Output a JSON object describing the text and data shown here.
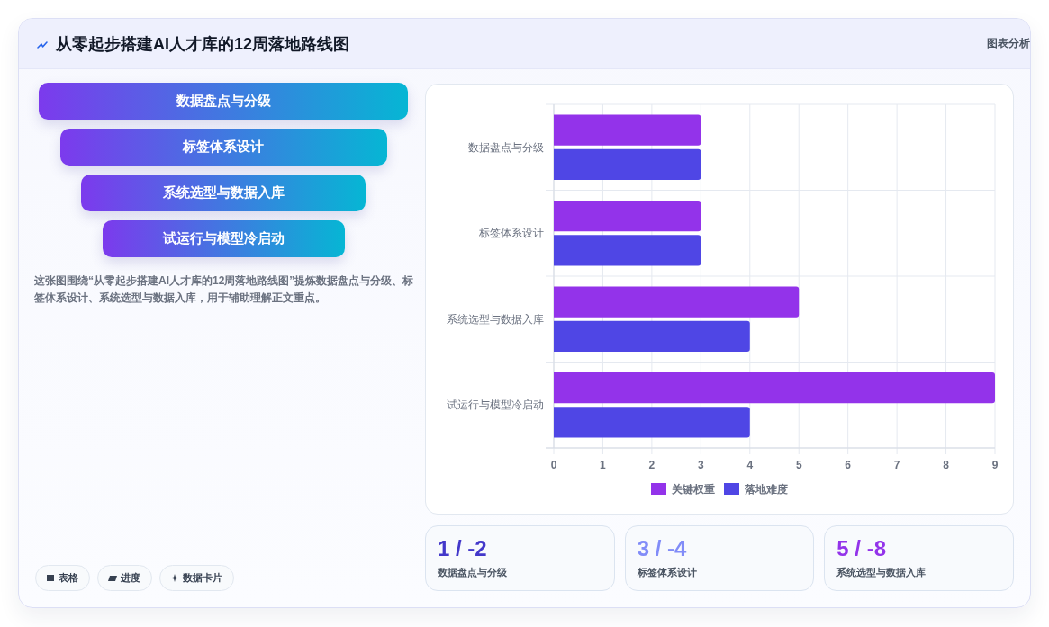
{
  "chart_data": [
    {
      "type": "other",
      "title": "从零起步搭建AI人才库的12周落地路线图",
      "categories": [
        "数据盘点与分级",
        "标签体系设计",
        "系统选型与数据入库",
        "试运行与模型冷启动"
      ],
      "annotations": [
        "图表分析",
        "这张图围绕“从零起步搭建AI人才库的12周落地路线图”提炼数据盘点与分级、标签体系设计、系统选型与数据入库，用于辅助理解正文重点。",
        "表格",
        "进度",
        "数据卡片"
      ]
    },
    {
      "type": "bar",
      "orientation": "horizontal",
      "categories": [
        "数据盘点与分级",
        "标签体系设计",
        "系统选型与数据入库",
        "试运行与模型冷启动"
      ],
      "series": [
        {
          "name": "关键权重",
          "color": "#9333ea",
          "values": [
            3,
            3,
            5,
            9
          ]
        },
        {
          "name": "落地难度",
          "color": "#4f46e5",
          "values": [
            3,
            3,
            4,
            4
          ]
        }
      ],
      "xlim": [
        0,
        9
      ],
      "xticks": [
        0,
        1,
        2,
        3,
        4,
        5,
        6,
        7,
        8,
        9
      ],
      "grid": true,
      "legend": "bottom"
    },
    {
      "type": "other",
      "categories": [
        "数据盘点与分级",
        "标签体系设计",
        "系统选型与数据入库"
      ],
      "annotations": [
        "1 / -2",
        "3 / -4",
        "5 / -8"
      ]
    }
  ]
}
